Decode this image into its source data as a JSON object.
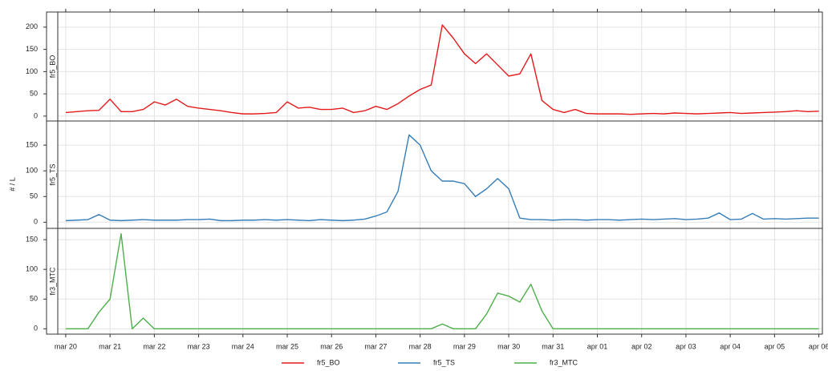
{
  "chart_data": {
    "type": "line",
    "ylabel": "# / L",
    "grid": true,
    "legend_position": "bottom",
    "xlim": [
      -0.18,
      17.08
    ],
    "xticks": [
      {
        "value": 0,
        "label": "mar 20"
      },
      {
        "value": 1,
        "label": "mar 21"
      },
      {
        "value": 2,
        "label": "mar 22"
      },
      {
        "value": 3,
        "label": "mar 23"
      },
      {
        "value": 4,
        "label": "mar 24"
      },
      {
        "value": 5,
        "label": "mar 25"
      },
      {
        "value": 6,
        "label": "mar 26"
      },
      {
        "value": 7,
        "label": "mar 27"
      },
      {
        "value": 8,
        "label": "mar 28"
      },
      {
        "value": 9,
        "label": "mar 29"
      },
      {
        "value": 10,
        "label": "mar 30"
      },
      {
        "value": 11,
        "label": "mar 31"
      },
      {
        "value": 12,
        "label": "apr 01"
      },
      {
        "value": 13,
        "label": "apr 02"
      },
      {
        "value": 14,
        "label": "apr 03"
      },
      {
        "value": 15,
        "label": "apr 04"
      },
      {
        "value": 16,
        "label": "apr 05"
      },
      {
        "value": 17,
        "label": "apr 06"
      }
    ],
    "x": [
      0,
      0.25,
      0.5,
      0.75,
      1,
      1.25,
      1.5,
      1.75,
      2,
      2.25,
      2.5,
      2.75,
      3,
      3.25,
      3.5,
      3.75,
      4,
      4.25,
      4.5,
      4.75,
      5,
      5.25,
      5.5,
      5.75,
      6,
      6.25,
      6.5,
      6.75,
      7,
      7.25,
      7.5,
      7.75,
      8,
      8.25,
      8.5,
      8.75,
      9,
      9.25,
      9.5,
      9.75,
      10,
      10.25,
      10.5,
      10.75,
      11,
      11.25,
      11.5,
      11.75,
      12,
      12.25,
      12.5,
      12.75,
      13,
      13.25,
      13.5,
      13.75,
      14,
      14.25,
      14.5,
      14.75,
      15,
      15.25,
      15.5,
      15.75,
      16,
      16.25,
      16.5,
      16.75,
      17
    ],
    "panels": [
      {
        "ylim": [
          -11,
          234
        ],
        "yticks": [
          0,
          50,
          100,
          150,
          200
        ],
        "series": [
          {
            "name": "fr5_BO",
            "color": "#e41a1c",
            "values": [
              8,
              10,
              12,
              13,
              38,
              10,
              10,
              15,
              32,
              25,
              38,
              22,
              18,
              15,
              12,
              8,
              5,
              5,
              6,
              8,
              32,
              18,
              20,
              15,
              15,
              18,
              8,
              12,
              22,
              15,
              28,
              45,
              60,
              70,
              205,
              175,
              140,
              118,
              140,
              115,
              90,
              95,
              140,
              35,
              15,
              8,
              15,
              6,
              5,
              5,
              5,
              4,
              5,
              6,
              5,
              7,
              6,
              5,
              6,
              7,
              8,
              6,
              7,
              8,
              9,
              10,
              12,
              10,
              11
            ]
          }
        ]
      },
      {
        "ylim": [
          -12,
          197
        ],
        "yticks": [
          0,
          50,
          100,
          150
        ],
        "series": [
          {
            "name": "fr5_TS",
            "color": "#377eb8",
            "values": [
              3,
              4,
              5,
              15,
              4,
              3,
              4,
              5,
              4,
              4,
              4,
              5,
              5,
              6,
              3,
              3,
              4,
              4,
              5,
              4,
              5,
              4,
              3,
              5,
              4,
              3,
              4,
              6,
              12,
              20,
              60,
              170,
              150,
              100,
              80,
              80,
              75,
              50,
              65,
              85,
              65,
              8,
              5,
              5,
              4,
              5,
              5,
              4,
              5,
              5,
              4,
              5,
              6,
              5,
              6,
              7,
              5,
              6,
              8,
              18,
              5,
              6,
              17,
              6,
              7,
              6,
              7,
              8,
              8
            ]
          }
        ]
      },
      {
        "ylim": [
          -9,
          169
        ],
        "yticks": [
          0,
          50,
          100,
          150
        ],
        "series": [
          {
            "name": "fr3_MTC",
            "color": "#4daf4a",
            "values": [
              0,
              0,
              0,
              28,
              50,
              160,
              0,
              18,
              0,
              0,
              0,
              0,
              0,
              0,
              0,
              0,
              0,
              0,
              0,
              0,
              0,
              0,
              0,
              0,
              0,
              0,
              0,
              0,
              0,
              0,
              0,
              0,
              0,
              0,
              8,
              0,
              0,
              0,
              25,
              60,
              55,
              45,
              75,
              30,
              0,
              0,
              0,
              0,
              0,
              0,
              0,
              0,
              0,
              0,
              0,
              0,
              0,
              0,
              0,
              0,
              0,
              0,
              0,
              0,
              0,
              0,
              0,
              0,
              0
            ]
          }
        ]
      }
    ]
  }
}
